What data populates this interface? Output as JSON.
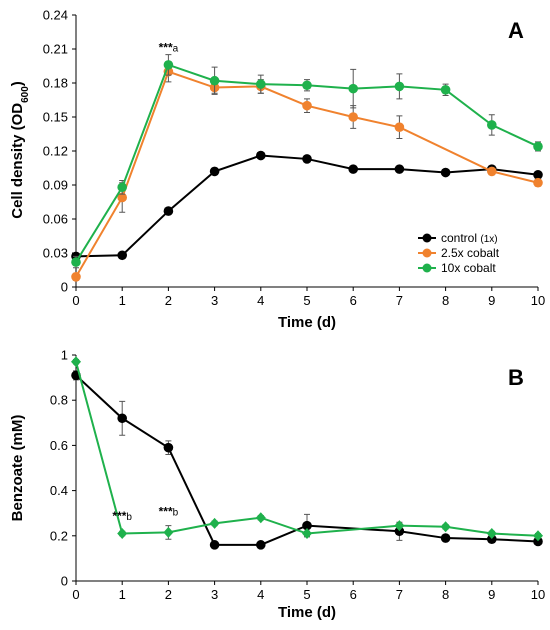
{
  "chart_data": [
    {
      "type": "line",
      "panel_label": "A",
      "ylabel": "Cell density (OD",
      "ylabel_sub": "600",
      "ylabel_suffix": ")",
      "xlabel": "Time (d)",
      "xlim": [
        0,
        10
      ],
      "ylim": [
        0,
        0.24
      ],
      "x_ticks": [
        "0",
        "1",
        "2",
        "3",
        "4",
        "5",
        "6",
        "7",
        "8",
        "9",
        "10"
      ],
      "y_ticks": [
        "0",
        "0.03",
        "0.06",
        "0.09",
        "0.12",
        "0.15",
        "0.18",
        "0.21",
        "0.24"
      ],
      "grid": false,
      "legend_position": "bottom-right",
      "series": [
        {
          "name": "control",
          "name_suffix": "(1x)",
          "color": "#000000",
          "marker": "circle",
          "x": [
            0,
            1,
            2,
            3,
            4,
            5,
            6,
            7,
            8,
            9,
            10
          ],
          "y": [
            0.027,
            0.028,
            0.067,
            0.102,
            0.116,
            0.113,
            0.104,
            0.104,
            0.101,
            0.104,
            0.099
          ],
          "err": [
            0.002,
            0.002,
            0.002,
            0.003,
            0.002,
            0.002,
            0.002,
            0.002,
            0.002,
            0.002,
            0.002
          ]
        },
        {
          "name": "2.5x cobalt",
          "color": "#F0822E",
          "marker": "circle",
          "x": [
            0,
            1,
            2,
            3,
            4,
            5,
            6,
            7,
            8,
            9,
            10
          ],
          "y": [
            0.009,
            0.079,
            0.19,
            0.176,
            0.177,
            0.16,
            0.15,
            0.141,
            null,
            0.102,
            0.092
          ],
          "err": [
            0.003,
            0.013,
            0.009,
            0.005,
            0.006,
            0.006,
            0.01,
            0.01,
            null,
            0.003,
            0.003
          ]
        },
        {
          "name": "10x cobalt",
          "color": "#1FB14C",
          "marker": "circle",
          "x": [
            0,
            1,
            2,
            3,
            4,
            5,
            6,
            7,
            8,
            9,
            10
          ],
          "y": [
            0.022,
            0.088,
            0.196,
            0.182,
            0.179,
            0.178,
            0.175,
            0.177,
            0.174,
            0.143,
            0.124
          ],
          "err": [
            0.005,
            0.006,
            0.009,
            0.012,
            0.008,
            0.005,
            0.017,
            0.011,
            0.005,
            0.009,
            0.004
          ]
        }
      ],
      "annotations": [
        {
          "x": 2,
          "y": 0.208,
          "stars": "***",
          "sub": "a"
        }
      ]
    },
    {
      "type": "line",
      "panel_label": "B",
      "ylabel": "Benzoate (mM)",
      "xlabel": "Time (d)",
      "xlim": [
        0,
        10
      ],
      "ylim": [
        0,
        1
      ],
      "x_ticks": [
        "0",
        "1",
        "2",
        "3",
        "4",
        "5",
        "6",
        "7",
        "8",
        "9",
        "10"
      ],
      "y_ticks": [
        "0",
        "0.2",
        "0.4",
        "0.6",
        "0.8",
        "1"
      ],
      "grid": false,
      "series": [
        {
          "name": "control",
          "color": "#000000",
          "marker": "circle",
          "x": [
            0,
            1,
            2,
            3,
            4,
            5,
            7,
            8,
            9,
            10
          ],
          "y": [
            0.91,
            0.72,
            0.59,
            0.16,
            0.16,
            0.245,
            0.22,
            0.19,
            0.185,
            0.175
          ],
          "err": [
            0.02,
            0.075,
            0.03,
            0.01,
            0.01,
            0.05,
            0.04,
            0.01,
            0.01,
            0.01
          ]
        },
        {
          "name": "10x cobalt",
          "color": "#1FB14C",
          "marker": "diamond",
          "x": [
            0,
            1,
            2,
            3,
            4,
            5,
            7,
            8,
            9,
            10
          ],
          "y": [
            0.97,
            0.21,
            0.215,
            0.255,
            0.28,
            0.21,
            0.245,
            0.24,
            0.21,
            0.2
          ],
          "err": [
            0.01,
            0.01,
            0.03,
            0.01,
            0.01,
            0.01,
            0.01,
            0.01,
            0.01,
            0.01
          ]
        }
      ],
      "annotations": [
        {
          "x": 1,
          "y": 0.27,
          "stars": "***",
          "sub": "b"
        },
        {
          "x": 2,
          "y": 0.29,
          "stars": "***",
          "sub": "b"
        }
      ]
    }
  ]
}
